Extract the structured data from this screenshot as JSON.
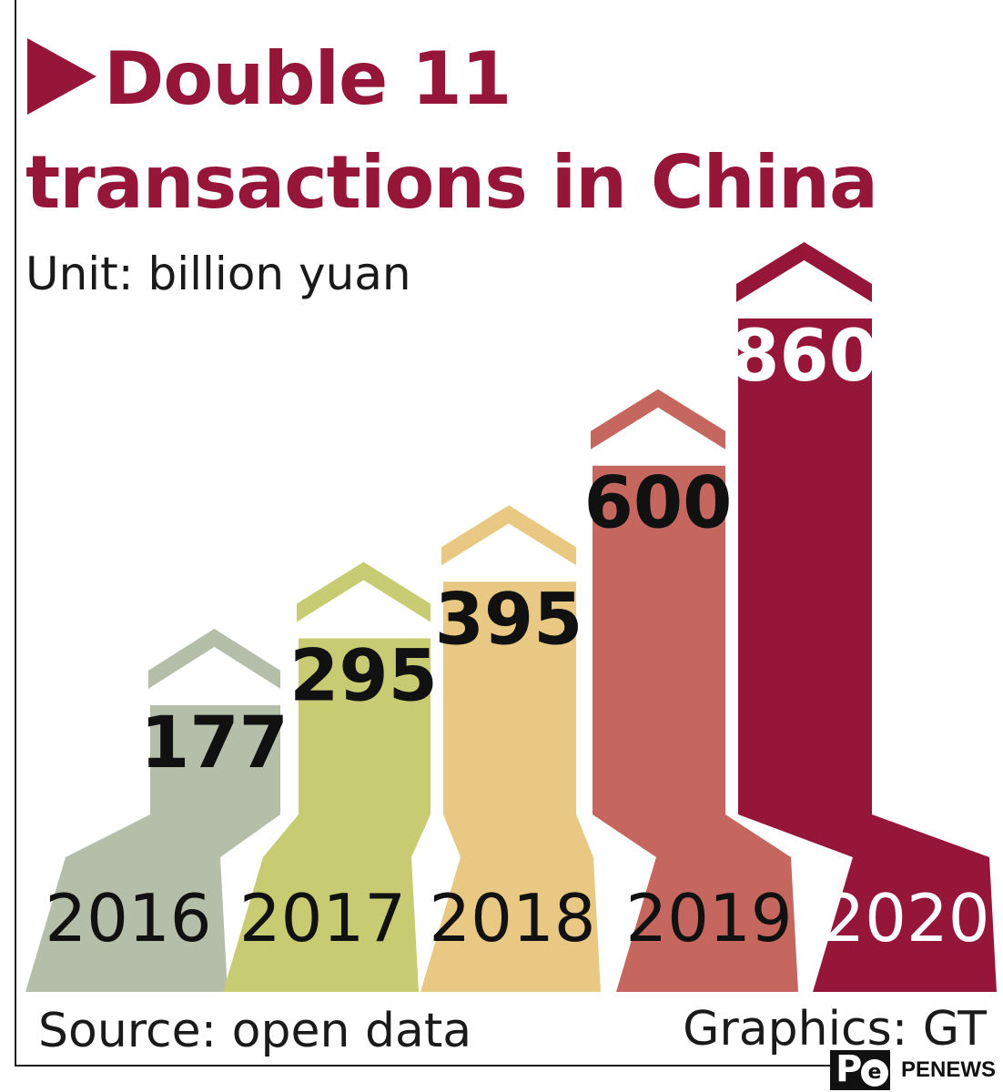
{
  "title_line1": "Double 11",
  "title_line2": "transactions in China",
  "unit": "Unit: billion yuan",
  "source": "Source: open data",
  "graphics": "Graphics: GT",
  "logo_text": "PENEWS",
  "logo_letter": "P",
  "logo_circle": "e",
  "colors": {
    "title": "#961639",
    "2016": "#b5bea8",
    "2017": "#c7cc73",
    "2018": "#e9c883",
    "2019": "#c5665f",
    "2020": "#961639"
  },
  "chart_data": {
    "type": "bar",
    "title": "Double 11 transactions in China",
    "unit": "billion yuan",
    "categories": [
      "2016",
      "2017",
      "2018",
      "2019",
      "2020"
    ],
    "values": [
      177,
      295,
      395,
      600,
      860
    ],
    "ylim": [
      0,
      860
    ],
    "grid": false,
    "data_labels": [
      "177",
      "295",
      "395",
      "600",
      "860"
    ]
  }
}
